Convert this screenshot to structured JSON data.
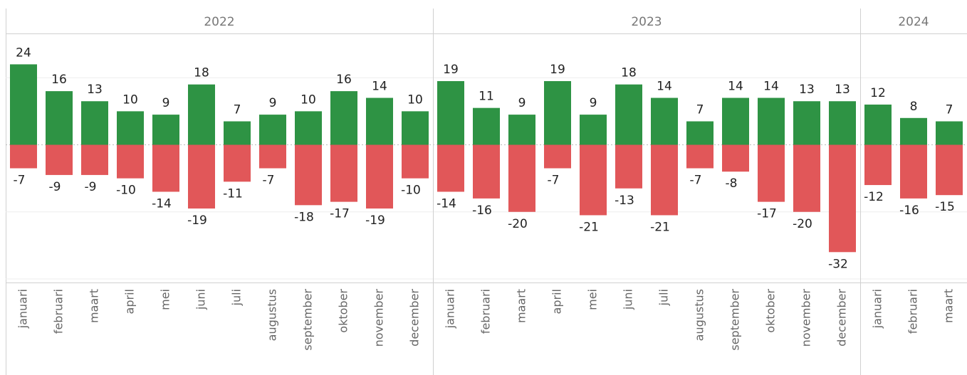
{
  "chart_data": {
    "type": "diverging-bar",
    "positive_color": "#2e9344",
    "negative_color": "#e15759",
    "ylim": [
      -40,
      33
    ],
    "yticks": [
      -40,
      -20,
      0,
      20
    ],
    "grid": true,
    "panels": [
      {
        "label": "2022",
        "categories": [
          "januari",
          "februari",
          "maart",
          "april",
          "mei",
          "juni",
          "juli",
          "augustus",
          "september",
          "oktober",
          "november",
          "december"
        ],
        "positive": [
          24,
          16,
          13,
          10,
          9,
          18,
          7,
          9,
          10,
          16,
          14,
          10
        ],
        "negative": [
          -7,
          -9,
          -9,
          -10,
          -14,
          -19,
          -11,
          -7,
          -18,
          -17,
          -19,
          -10
        ]
      },
      {
        "label": "2023",
        "categories": [
          "januari",
          "februari",
          "maart",
          "april",
          "mei",
          "juni",
          "juli",
          "augustus",
          "september",
          "oktober",
          "november",
          "december"
        ],
        "positive": [
          19,
          11,
          9,
          19,
          9,
          18,
          14,
          7,
          14,
          14,
          13,
          13
        ],
        "negative": [
          -14,
          -16,
          -20,
          -7,
          -21,
          -13,
          -21,
          -7,
          -8,
          -17,
          -20,
          -32
        ]
      },
      {
        "label": "2024",
        "categories": [
          "januari",
          "februari",
          "maart"
        ],
        "positive": [
          12,
          8,
          7
        ],
        "negative": [
          -12,
          -16,
          -15
        ]
      }
    ]
  }
}
